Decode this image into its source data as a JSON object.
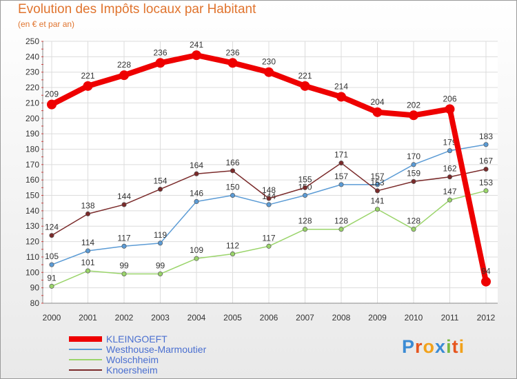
{
  "header": {
    "title": "Evolution des Impôts locaux par Habitant",
    "subtitle": "(en € et par an)"
  },
  "logo": {
    "text": "Proxiti",
    "letter_colors": [
      "#3b8bd4",
      "#e6551f",
      "#f2a21b",
      "#3b8bd4",
      "#7ab840",
      "#e6551f",
      "#f2a21b"
    ]
  },
  "chart_data": {
    "type": "line",
    "x": [
      "2000",
      "2001",
      "2002",
      "2003",
      "2004",
      "2005",
      "2006",
      "2007",
      "2008",
      "2009",
      "2010",
      "2011",
      "2012"
    ],
    "ylim": [
      80,
      250
    ],
    "yticks": [
      80,
      90,
      100,
      110,
      120,
      130,
      140,
      150,
      160,
      170,
      180,
      190,
      200,
      210,
      220,
      230,
      240,
      250
    ],
    "grid": true,
    "legend_position": "bottom-left",
    "series": [
      {
        "name": "KLEINGOEFT",
        "color": "#ee0000",
        "emphasis": true,
        "values": [
          209,
          221,
          228,
          236,
          241,
          236,
          230,
          221,
          214,
          204,
          202,
          206,
          94
        ]
      },
      {
        "name": "Westhouse-Marmoutier",
        "color": "#5b9bd5",
        "emphasis": false,
        "values": [
          105,
          114,
          117,
          119,
          146,
          150,
          144,
          150,
          157,
          157,
          170,
          179,
          183
        ]
      },
      {
        "name": "Wolschheim",
        "color": "#9ad46a",
        "emphasis": false,
        "values": [
          91,
          101,
          99,
          99,
          109,
          112,
          117,
          128,
          128,
          141,
          128,
          147,
          153
        ]
      },
      {
        "name": "Knoersheim",
        "color": "#7a2a2a",
        "emphasis": false,
        "values": [
          124,
          138,
          144,
          154,
          164,
          166,
          148,
          155,
          171,
          153,
          159,
          162,
          167
        ]
      }
    ]
  }
}
